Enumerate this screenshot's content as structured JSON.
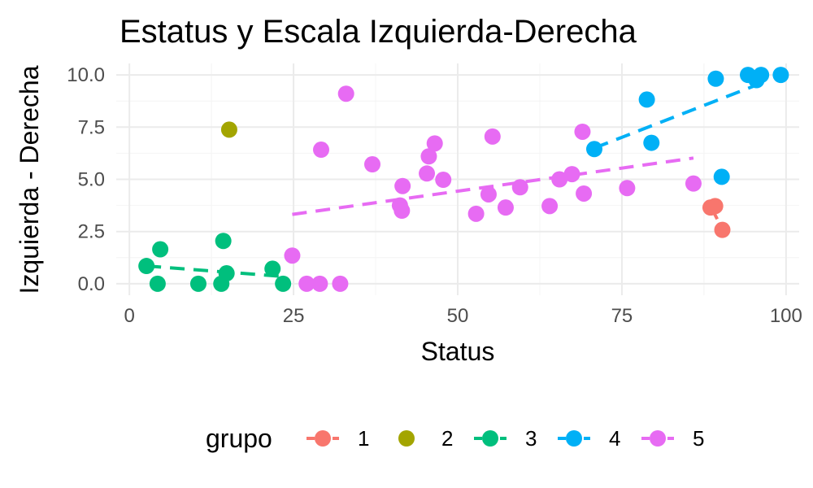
{
  "chart_data": {
    "type": "scatter",
    "title": "Estatus y Escala Izquierda-Derecha",
    "xlabel": "Status",
    "ylabel": "Izquierda - Derecha",
    "xlim": [
      -2,
      102
    ],
    "ylim": [
      -0.55,
      10.55
    ],
    "x_ticks": [
      0,
      25,
      50,
      75,
      100
    ],
    "x_tick_labels": [
      "0",
      "25",
      "50",
      "75",
      "100"
    ],
    "y_ticks": [
      0,
      2.5,
      5,
      7.5,
      10
    ],
    "y_tick_labels": [
      "0.0",
      "2.5",
      "5.0",
      "7.5",
      "10.0"
    ],
    "grid": true,
    "legend": {
      "title": "grupo",
      "position": "bottom"
    },
    "series": [
      {
        "name": "1",
        "color": "#F8766D",
        "points": [
          [
            88.5,
            3.65
          ],
          [
            89.2,
            3.72
          ],
          [
            90.3,
            2.58
          ]
        ],
        "trend": [
          [
            88.5,
            3.72
          ],
          [
            90.3,
            2.62
          ]
        ]
      },
      {
        "name": "2",
        "color": "#A3A500",
        "points": [
          [
            15.2,
            7.38
          ]
        ],
        "trend": []
      },
      {
        "name": "3",
        "color": "#00BF7D",
        "points": [
          [
            2.6,
            0.85
          ],
          [
            4.3,
            0.0
          ],
          [
            4.7,
            1.65
          ],
          [
            10.5,
            0.0
          ],
          [
            14.0,
            0.0
          ],
          [
            14.3,
            2.05
          ],
          [
            14.8,
            0.5
          ],
          [
            21.8,
            0.72
          ],
          [
            23.4,
            0.0
          ]
        ],
        "trend": [
          [
            2.6,
            0.85
          ],
          [
            23.4,
            0.35
          ]
        ]
      },
      {
        "name": "4",
        "color": "#00B0F6",
        "points": [
          [
            70.8,
            6.45
          ],
          [
            78.8,
            8.82
          ],
          [
            79.5,
            6.75
          ],
          [
            89.3,
            9.82
          ],
          [
            90.2,
            5.12
          ],
          [
            94.2,
            10.0
          ],
          [
            95.5,
            9.75
          ],
          [
            96.2,
            10.0
          ],
          [
            99.2,
            10.0
          ]
        ],
        "trend": [
          [
            70.8,
            6.5
          ],
          [
            96.2,
            9.6
          ]
        ]
      },
      {
        "name": "5",
        "color": "#E76BF3",
        "points": [
          [
            24.8,
            1.35
          ],
          [
            27.0,
            0.0
          ],
          [
            29.0,
            0.0
          ],
          [
            29.2,
            6.42
          ],
          [
            32.1,
            0.0
          ],
          [
            33.0,
            9.1
          ],
          [
            37.0,
            5.72
          ],
          [
            41.2,
            3.75
          ],
          [
            41.5,
            3.5
          ],
          [
            41.6,
            4.68
          ],
          [
            45.3,
            5.28
          ],
          [
            45.6,
            6.1
          ],
          [
            46.5,
            6.72
          ],
          [
            47.8,
            4.98
          ],
          [
            52.8,
            3.35
          ],
          [
            54.7,
            4.28
          ],
          [
            55.3,
            7.05
          ],
          [
            57.3,
            3.65
          ],
          [
            59.5,
            4.62
          ],
          [
            64.0,
            3.72
          ],
          [
            65.5,
            5.0
          ],
          [
            67.4,
            5.25
          ],
          [
            69.0,
            7.28
          ],
          [
            69.2,
            4.32
          ],
          [
            75.8,
            4.58
          ],
          [
            85.9,
            4.8
          ]
        ],
        "trend": [
          [
            24.8,
            3.32
          ],
          [
            85.9,
            6.02
          ]
        ]
      }
    ]
  }
}
